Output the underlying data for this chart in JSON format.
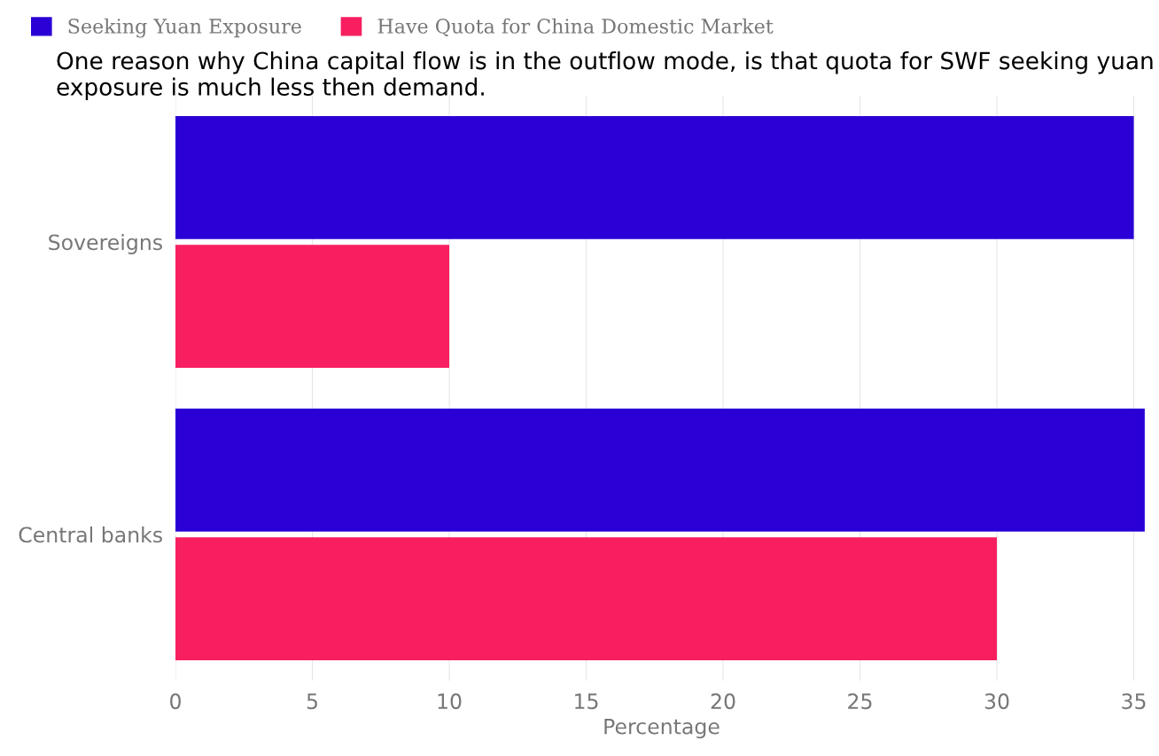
{
  "chart_data": {
    "type": "bar",
    "orientation": "horizontal",
    "categories": [
      "Sovereigns",
      "Central banks"
    ],
    "series": [
      {
        "name": "Seeking Yuan Exposure",
        "color": "#2a00d6",
        "values": [
          35,
          35.4
        ]
      },
      {
        "name": "Have Quota for China Domestic Market",
        "color": "#f71f60",
        "values": [
          10,
          30
        ]
      }
    ],
    "xlabel": "Percentage",
    "xlim": [
      0,
      35.5
    ],
    "xticks": [
      0,
      5,
      10,
      15,
      20,
      25,
      30,
      35
    ],
    "grid": "x",
    "legend": "top left",
    "annotations": [
      "One reason why China capital flow is in the outflow mode, is that quota for SWF seeking yuan exposure is much less then demand."
    ]
  }
}
